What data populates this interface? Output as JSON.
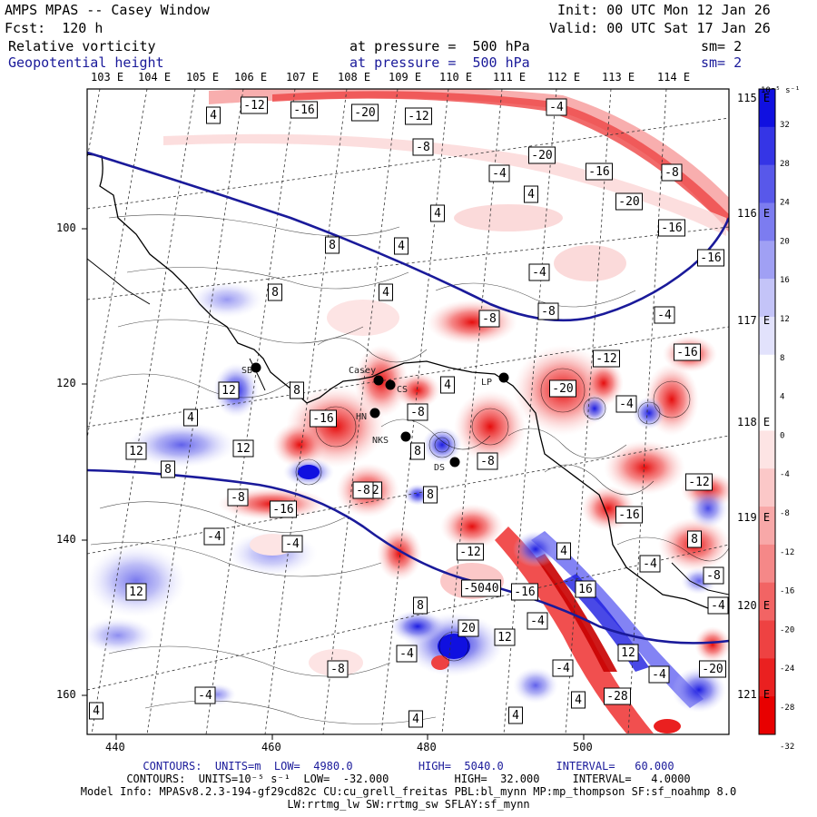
{
  "header": {
    "title": "AMPS MPAS -- Casey Window",
    "forecast": "Fcst:  120 h",
    "init": "Init: 00 UTC Mon 12 Jan 26",
    "valid": "Valid: 00 UTC Sat 17 Jan 26",
    "field1": "Relative vorticity",
    "field2": "Geopotential height",
    "pressure1": "at pressure =  500 hPa",
    "pressure2": "at pressure =  500 hPa",
    "sm1": "sm= 2",
    "sm2": "sm= 2"
  },
  "top_lon_labels": [
    "103 E",
    "104 E",
    "105 E",
    "106 E",
    "107 E",
    "108 E",
    "109 E",
    "110 E",
    "111 E",
    "112 E",
    "113 E",
    "114 E"
  ],
  "right_lon_labels": [
    "115 E",
    "116 E",
    "117 E",
    "118 E",
    "119 E",
    "120 E",
    "121 E"
  ],
  "x_ticks": [
    "440",
    "460",
    "480",
    "500"
  ],
  "y_ticks": [
    "100",
    "120",
    "140",
    "160"
  ],
  "colorbar": {
    "unit": "10⁻⁵ s⁻¹",
    "labels": [
      "32",
      "28",
      "24",
      "20",
      "16",
      "12",
      "8",
      "4",
      "0",
      "-4",
      "-8",
      "-12",
      "-16",
      "-20",
      "-24",
      "-28",
      "-32"
    ],
    "colors": [
      "#1010e0",
      "#3535e6",
      "#5858ea",
      "#7c7cf0",
      "#a0a0f4",
      "#c4c4f8",
      "#e2e2fc",
      "#ffffff",
      "#ffffff",
      "#fde4e4",
      "#fbc8c8",
      "#f8a8a8",
      "#f58888",
      "#f26464",
      "#ee4242",
      "#ea2020",
      "#e80000"
    ]
  },
  "stations": [
    {
      "name": "SB"
    },
    {
      "name": "Casey"
    },
    {
      "name": "CS"
    },
    {
      "name": "HN"
    },
    {
      "name": "NKS"
    },
    {
      "name": "DS"
    },
    {
      "name": "LP"
    }
  ],
  "contour_labels": [
    "-12",
    "-16",
    "-20",
    "-12",
    "-4",
    "-8",
    "-20",
    "-16",
    "-8",
    "-4",
    "4",
    "4",
    "4",
    "-20",
    "-16",
    "8",
    "4",
    "-4",
    "8",
    "4",
    "-8",
    "-8",
    "-4",
    "-12",
    "-16",
    "12",
    "8",
    "4",
    "-16",
    "-8",
    "8",
    "4",
    "-8",
    "-20",
    "-4",
    "12",
    "12",
    "8",
    "-8",
    "-16",
    "-12",
    "-8",
    "-12",
    "-4",
    "-4",
    "8",
    "-12",
    "4",
    "-16",
    "-4",
    "12",
    "-8",
    "-16",
    "-4",
    "-5040",
    "8",
    "20",
    "12",
    "-4",
    "-4",
    "16",
    "-4",
    "-28",
    "-4",
    "12",
    "8",
    "-20",
    "-8",
    "-4",
    "4",
    "4",
    "4",
    "4",
    "-16"
  ],
  "footer": {
    "line1": "CONTOURS:  UNITS=m  LOW=  4980.0          HIGH=  5040.0        INTERVAL=   60.000",
    "line2": "CONTOURS:  UNITS=10⁻⁵ s⁻¹  LOW=  -32.000          HIGH=  32.000     INTERVAL=   4.0000",
    "line3": "Model Info: MPASv8.2.3-194-gf29cd82c CU:cu_grell_freitas PBL:bl_mynn MP:mp_thompson SF:sf_noahmp 8.0",
    "line4": "LW:rrtmg_lw SW:rrtmg_sw SFLAY:sf_mynn"
  }
}
